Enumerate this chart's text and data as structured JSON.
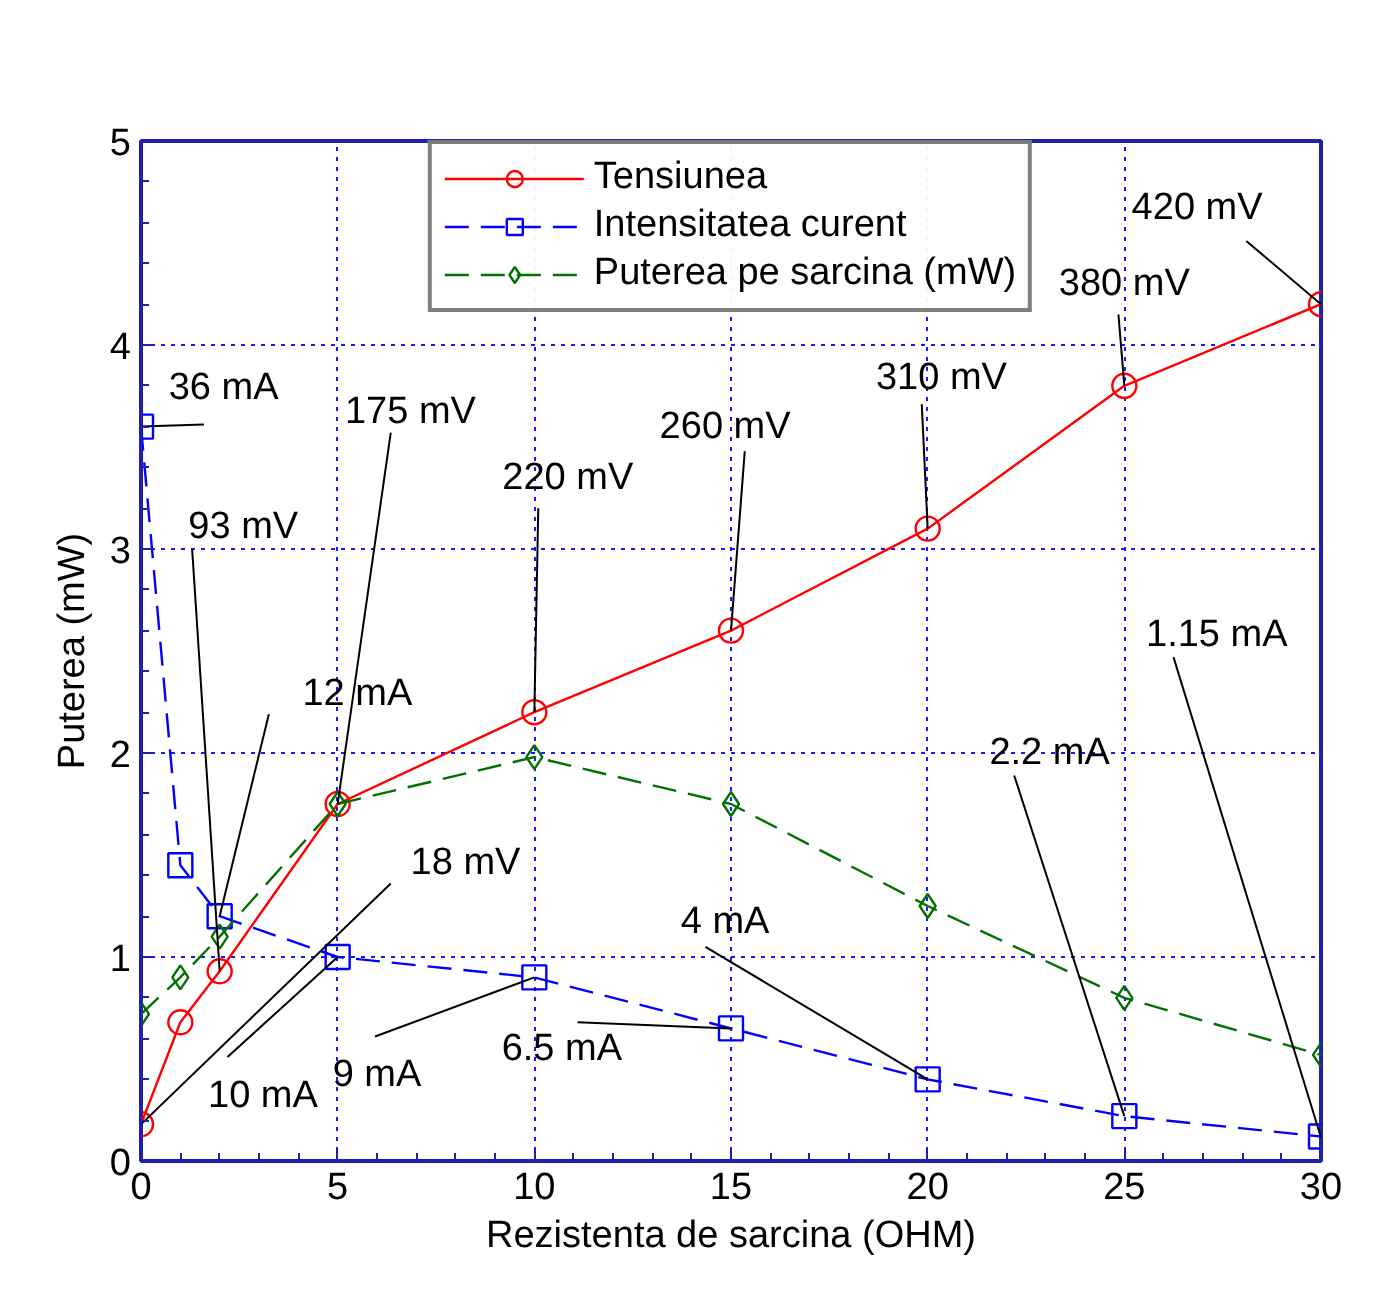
{
  "chart_data": {
    "type": "line",
    "xlabel": "Rezistenta de sarcina (OHM)",
    "ylabel": "Puterea (mW)",
    "x": [
      0,
      1,
      2,
      5,
      10,
      15,
      20,
      25,
      30
    ],
    "series": [
      {
        "name": "Tensiunea",
        "color": "#ff0000",
        "marker": "circle",
        "line_style": "solid",
        "values": [
          0.18,
          0.68,
          0.93,
          1.75,
          2.2,
          2.6,
          3.1,
          3.8,
          4.2
        ]
      },
      {
        "name": "Intensitatea curent",
        "color": "#0000ff",
        "marker": "square",
        "line_style": "dashed",
        "values": [
          3.6,
          1.45,
          1.2,
          1.0,
          0.9,
          0.65,
          0.4,
          0.22,
          0.12
        ]
      },
      {
        "name": "Puterea pe sarcina (mW)",
        "color": "#007000",
        "marker": "diamond",
        "line_style": "dashed",
        "values": [
          0.72,
          0.9,
          1.1,
          1.75,
          1.98,
          1.75,
          1.25,
          0.8,
          0.52
        ]
      }
    ],
    "annotations": [
      {
        "text": "18 mV",
        "x": 0,
        "y": 0.18
      },
      {
        "text": "93 mV",
        "x": 2,
        "y": 0.93
      },
      {
        "text": "175 mV",
        "x": 5,
        "y": 1.75
      },
      {
        "text": "220 mV",
        "x": 10,
        "y": 2.2
      },
      {
        "text": "260 mV",
        "x": 15,
        "y": 2.6
      },
      {
        "text": "310 mV",
        "x": 20,
        "y": 3.1
      },
      {
        "text": "380 mV",
        "x": 25,
        "y": 3.8
      },
      {
        "text": "420 mV",
        "x": 30,
        "y": 4.2
      },
      {
        "text": "36 mA",
        "x": 0,
        "y": 3.6
      },
      {
        "text": "12 mA",
        "x": 2,
        "y": 1.2
      },
      {
        "text": "10 mA",
        "x": 5,
        "y": 1.0
      },
      {
        "text": "9 mA",
        "x": 10,
        "y": 0.9
      },
      {
        "text": "6.5 mA",
        "x": 15,
        "y": 0.65
      },
      {
        "text": "4 mA",
        "x": 20,
        "y": 0.4
      },
      {
        "text": "2.2 mA",
        "x": 25,
        "y": 0.22
      },
      {
        "text": "1.15 mA",
        "x": 30,
        "y": 0.115
      }
    ],
    "xlim": [
      0,
      30
    ],
    "ylim": [
      0,
      5
    ],
    "xticks": [
      0,
      5,
      10,
      15,
      20,
      25,
      30
    ],
    "yticks": [
      0,
      1,
      2,
      3,
      4,
      5
    ],
    "grid": true,
    "legend": "top"
  }
}
